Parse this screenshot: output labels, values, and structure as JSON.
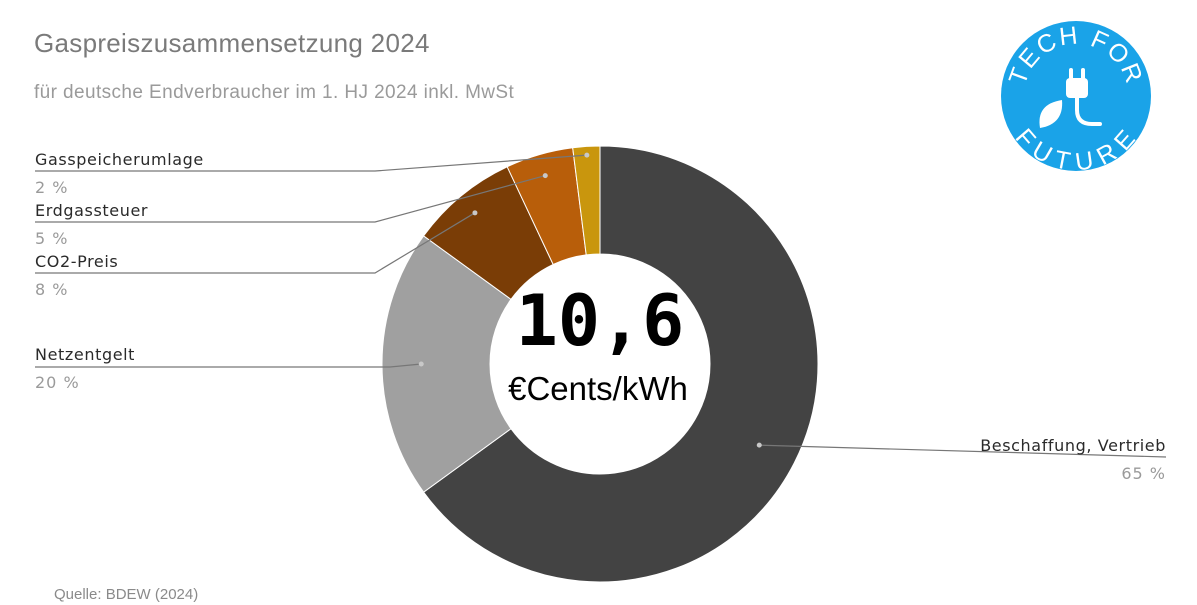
{
  "title": "Gaspreiszusammensetzung 2024",
  "subtitle": "für deutsche Endverbraucher im 1. HJ 2024 inkl. MwSt",
  "source": "Quelle: BDEW (2024)",
  "center": {
    "value": "10,6",
    "unit": "€Cents/kWh"
  },
  "logo": {
    "top_text": "TECH FOR",
    "bottom_text": "FUTURE",
    "color": "#1aa3e8"
  },
  "chart_data": {
    "type": "pie",
    "donut": true,
    "title": "Gaspreiszusammensetzung 2024",
    "slices": [
      {
        "name": "Beschaffung, Vertrieb",
        "value": 65,
        "label": "65 %",
        "color": "#434343"
      },
      {
        "name": "Netzentgelt",
        "value": 20,
        "label": "20 %",
        "color": "#a0a0a0"
      },
      {
        "name": "CO2-Preis",
        "value": 8,
        "label": "8 %",
        "color": "#7a3d06"
      },
      {
        "name": "Erdgassteuer",
        "value": 5,
        "label": "5 %",
        "color": "#b85e0a"
      },
      {
        "name": "Gasspeicherumlage",
        "value": 2,
        "label": "2 %",
        "color": "#c9960d"
      }
    ],
    "legend": "callouts"
  }
}
